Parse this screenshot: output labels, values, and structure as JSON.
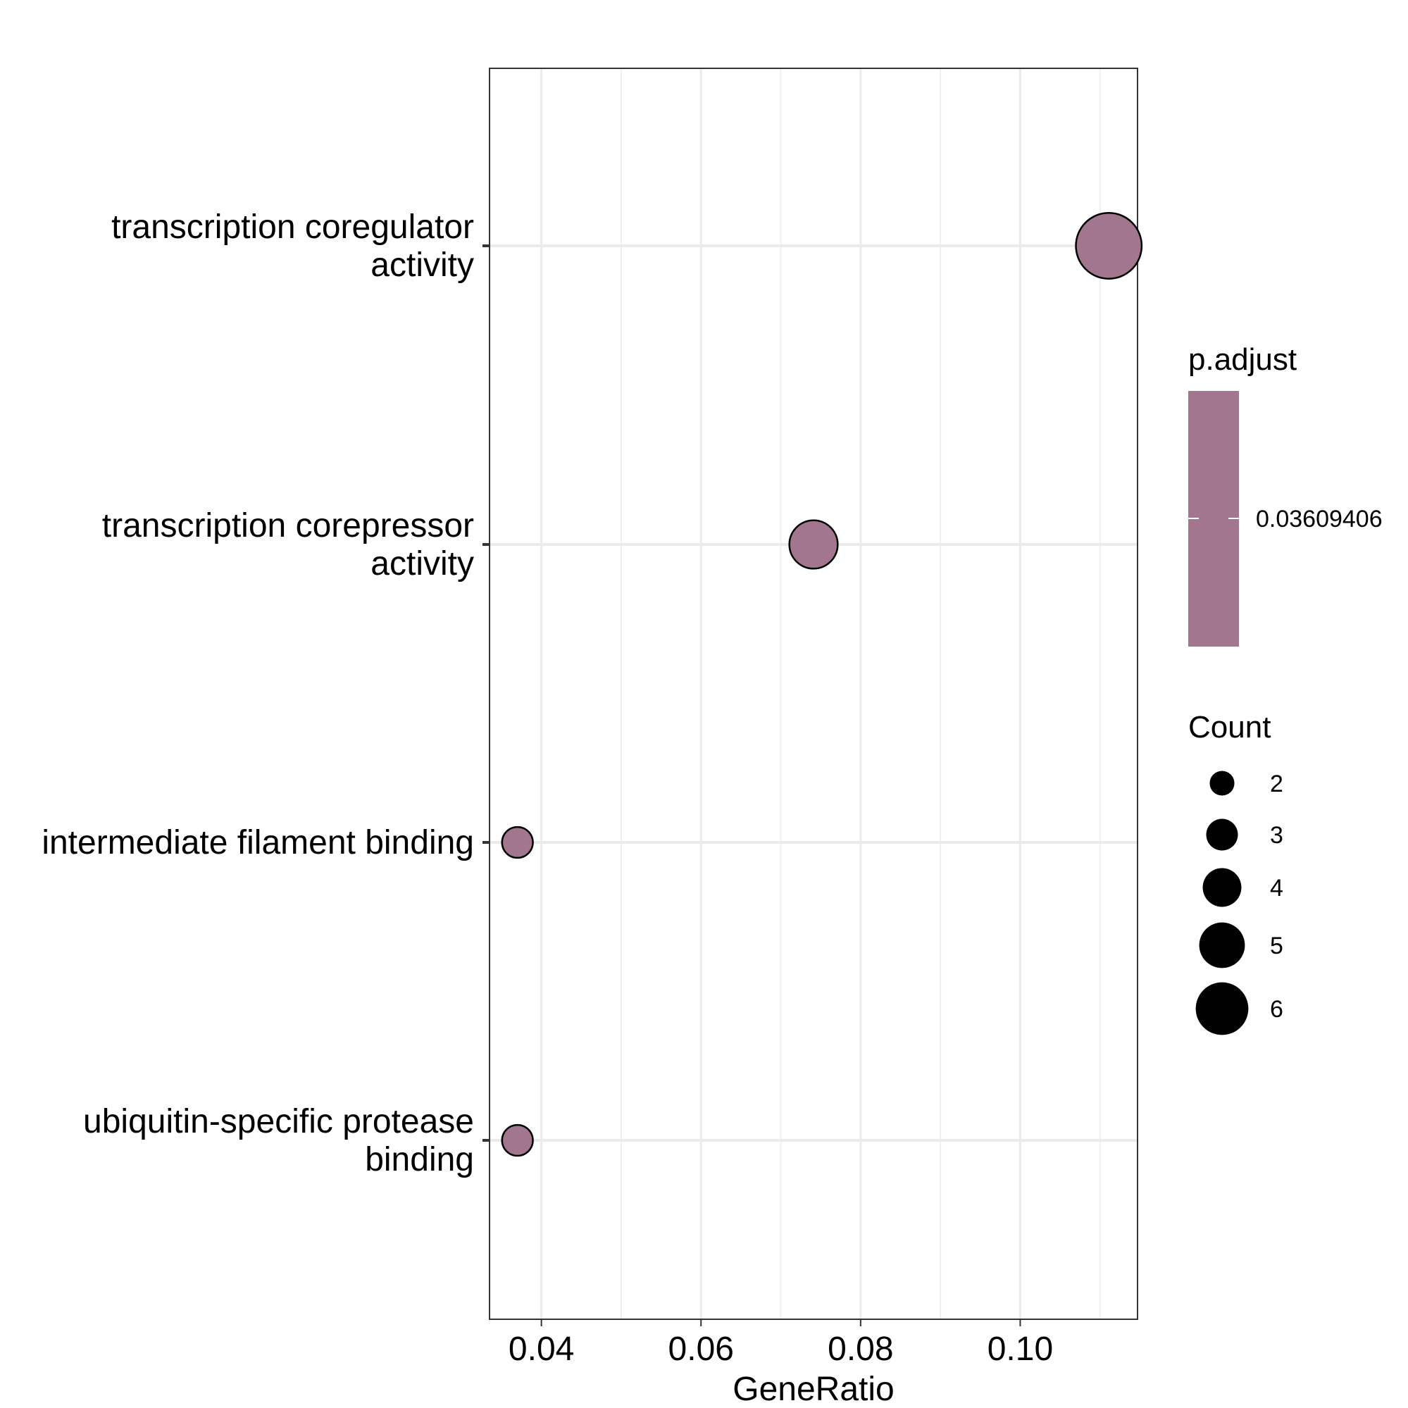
{
  "chart_data": {
    "type": "scatter",
    "xlabel": "GeneRatio",
    "ylabel": "",
    "title": "",
    "xlim": [
      0.0335,
      0.1147
    ],
    "x_ticks": [
      {
        "value": 0.04,
        "label": "0.04"
      },
      {
        "value": 0.06,
        "label": "0.06"
      },
      {
        "value": 0.08,
        "label": "0.08"
      },
      {
        "value": 0.1,
        "label": "0.10"
      }
    ],
    "x_minor_ticks": [
      0.05,
      0.07,
      0.09,
      0.11
    ],
    "categories": [
      {
        "lines": [
          "transcription coregulator",
          "activity"
        ]
      },
      {
        "lines": [
          "transcription corepressor",
          "activity"
        ]
      },
      {
        "lines": [
          "intermediate filament binding"
        ]
      },
      {
        "lines": [
          "ubiquitin-specific protease",
          "binding"
        ]
      }
    ],
    "points": [
      {
        "category_index": 0,
        "x": 0.1111,
        "count": 6,
        "p_adjust": 0.03609406
      },
      {
        "category_index": 1,
        "x": 0.0741,
        "count": 4,
        "p_adjust": 0.03609406
      },
      {
        "category_index": 2,
        "x": 0.037,
        "count": 2,
        "p_adjust": 0.03609406
      },
      {
        "category_index": 3,
        "x": 0.037,
        "count": 2,
        "p_adjust": 0.03609406
      }
    ],
    "grid": true,
    "point_color": "#a3768f",
    "legend": {
      "placement": "right",
      "color": {
        "title": "p.adjust",
        "value_label": "0.03609406",
        "color": "#a3768f"
      },
      "size": {
        "title": "Count",
        "entries": [
          {
            "value": 2,
            "label": "2"
          },
          {
            "value": 3,
            "label": "3"
          },
          {
            "value": 4,
            "label": "4"
          },
          {
            "value": 5,
            "label": "5"
          },
          {
            "value": 6,
            "label": "6"
          }
        ]
      }
    }
  }
}
